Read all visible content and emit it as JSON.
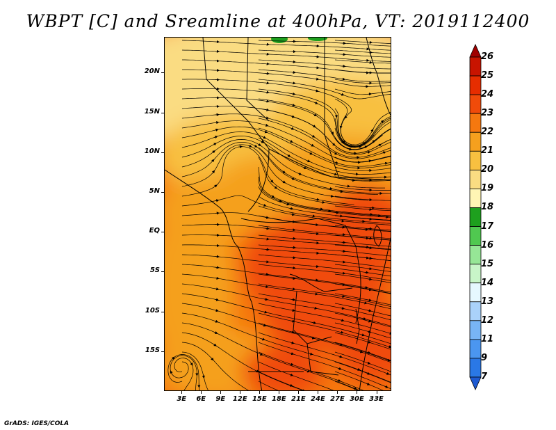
{
  "title": "WBPT [C] and Sreamline at 400hPa, VT: 2019112400",
  "credit": "GrADS: IGES/COLA",
  "map": {
    "lat_labels": [
      "20N",
      "15N",
      "10N",
      "5N",
      "EQ",
      "5S",
      "10S",
      "15S"
    ],
    "lat_values": [
      20,
      15,
      10,
      5,
      0,
      -5,
      -10,
      -15
    ],
    "lon_labels": [
      "3E",
      "6E",
      "9E",
      "12E",
      "15E",
      "18E",
      "21E",
      "24E",
      "27E",
      "30E",
      "33E"
    ],
    "lon_values": [
      3,
      6,
      9,
      12,
      15,
      18,
      21,
      24,
      27,
      30,
      33
    ],
    "lat_range": [
      -20,
      24.5
    ],
    "lon_range": [
      0.3,
      35.3
    ]
  },
  "colorbar": {
    "labels": [
      "26",
      "25",
      "24",
      "23",
      "22",
      "21",
      "20",
      "19",
      "18",
      "17",
      "16",
      "15",
      "14",
      "13",
      "12",
      "11",
      "9",
      "7"
    ],
    "colors": [
      "#a00000",
      "#c81400",
      "#e62d00",
      "#f04b0a",
      "#f5780f",
      "#f5a01e",
      "#f8c040",
      "#fadc82",
      "#fff5b4",
      "#1ea01e",
      "#50c850",
      "#96e696",
      "#c8f5c8",
      "#e6f8ff",
      "#aad2fa",
      "#78b4f5",
      "#4b96f0",
      "#2a78e6",
      "#1e5ad2"
    ]
  },
  "field_colors": {
    "pale": "#fadc82",
    "light": "#f8c040",
    "mid": "#f5a01e",
    "orange": "#f5780f",
    "deep": "#f04b0a",
    "green": "#1ea01e"
  }
}
